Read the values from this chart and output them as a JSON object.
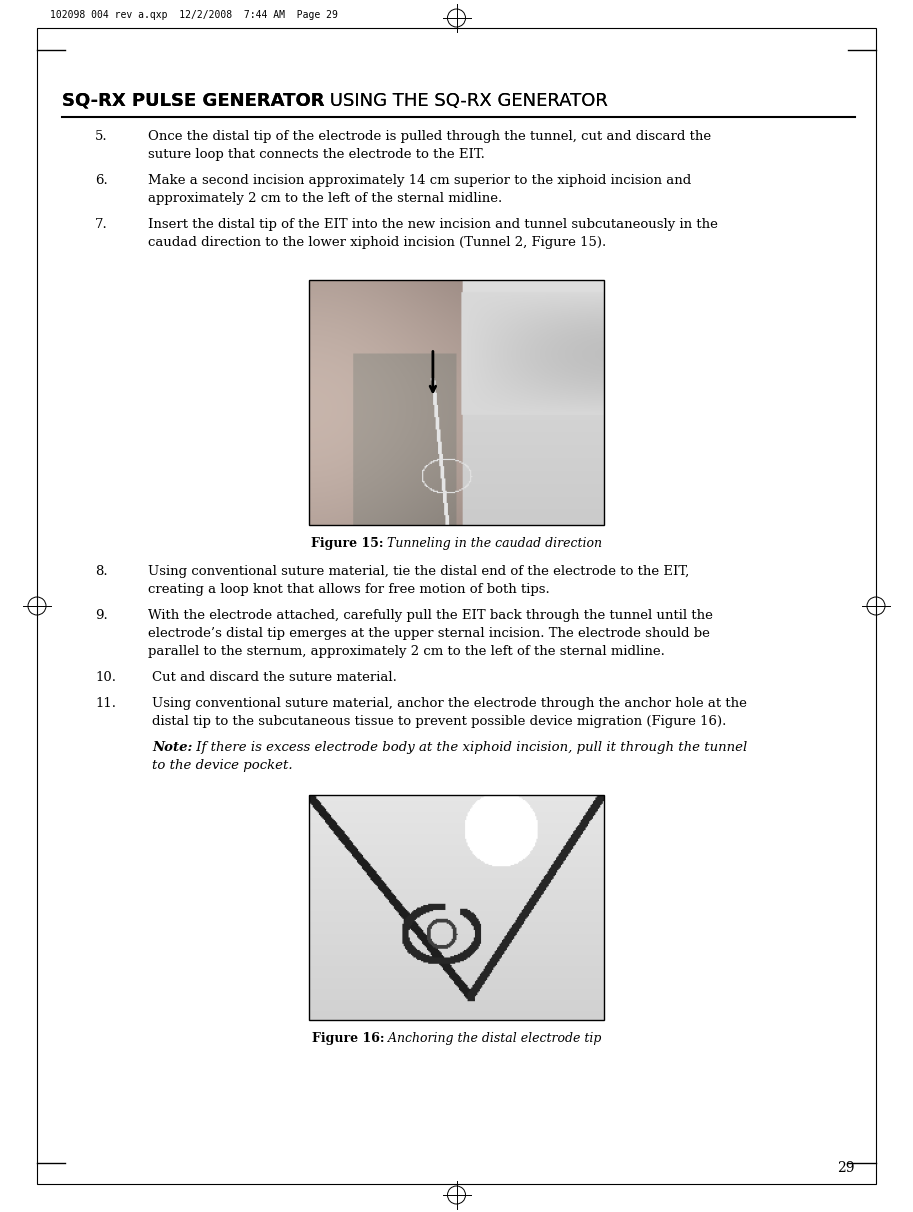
{
  "page_number": "29",
  "header_text": "102098 004 rev a.qxp  12/2/2008  7:44 AM  Page 29",
  "title_bold": "SQ-RX PULSE GENERATOR",
  "title_normal": " USING THE SQ-RX GENERATOR",
  "bg_color": "#ffffff",
  "body_fontsize": 9.5,
  "title_fontsize": 13.0,
  "caption_fontsize": 9.0,
  "header_fontsize": 7.0,
  "items": [
    {
      "num": "5.",
      "lines": [
        "Once the distal tip of the electrode is pulled through the tunnel, cut and discard the",
        "suture loop that connects the electrode to the EIT."
      ]
    },
    {
      "num": "6.",
      "lines": [
        "Make a second incision approximately 14 cm superior to the xiphoid incision and",
        "approximately 2 cm to the left of the sternal midline."
      ]
    },
    {
      "num": "7.",
      "lines": [
        "Insert the distal tip of the EIT into the new incision and tunnel subcutaneously in the",
        "caudad direction to the lower xiphoid incision (Tunnel 2, Figure 15)."
      ]
    }
  ],
  "fig15_cap_bold": "Figure 15:",
  "fig15_cap_italic": " Tunneling in the caudad direction",
  "items2": [
    {
      "num": "8.",
      "lines": [
        "Using conventional suture material, tie the distal end of the electrode to the EIT,",
        "creating a loop knot that allows for free motion of both tips."
      ]
    },
    {
      "num": "9.",
      "lines": [
        "With the electrode attached, carefully pull the EIT back through the tunnel until the",
        "electrode’s distal tip emerges at the upper sternal incision. The electrode should be",
        "parallel to the sternum, approximately 2 cm to the left of the sternal midline."
      ]
    },
    {
      "num": "10.",
      "lines": [
        "Cut and discard the suture material."
      ]
    },
    {
      "num": "11.",
      "lines": [
        "Using conventional suture material, anchor the electrode through the anchor hole at the",
        "distal tip to the subcutaneous tissue to prevent possible device migration (Figure 16)."
      ]
    }
  ],
  "note_bold": "Note:",
  "note_italic": " If there is excess electrode body at the xiphoid incision, pull it through the tunnel",
  "note_line2": "to the device pocket.",
  "fig16_cap_bold": "Figure 16:",
  "fig16_cap_italic": " Anchoring the distal electrode tip"
}
